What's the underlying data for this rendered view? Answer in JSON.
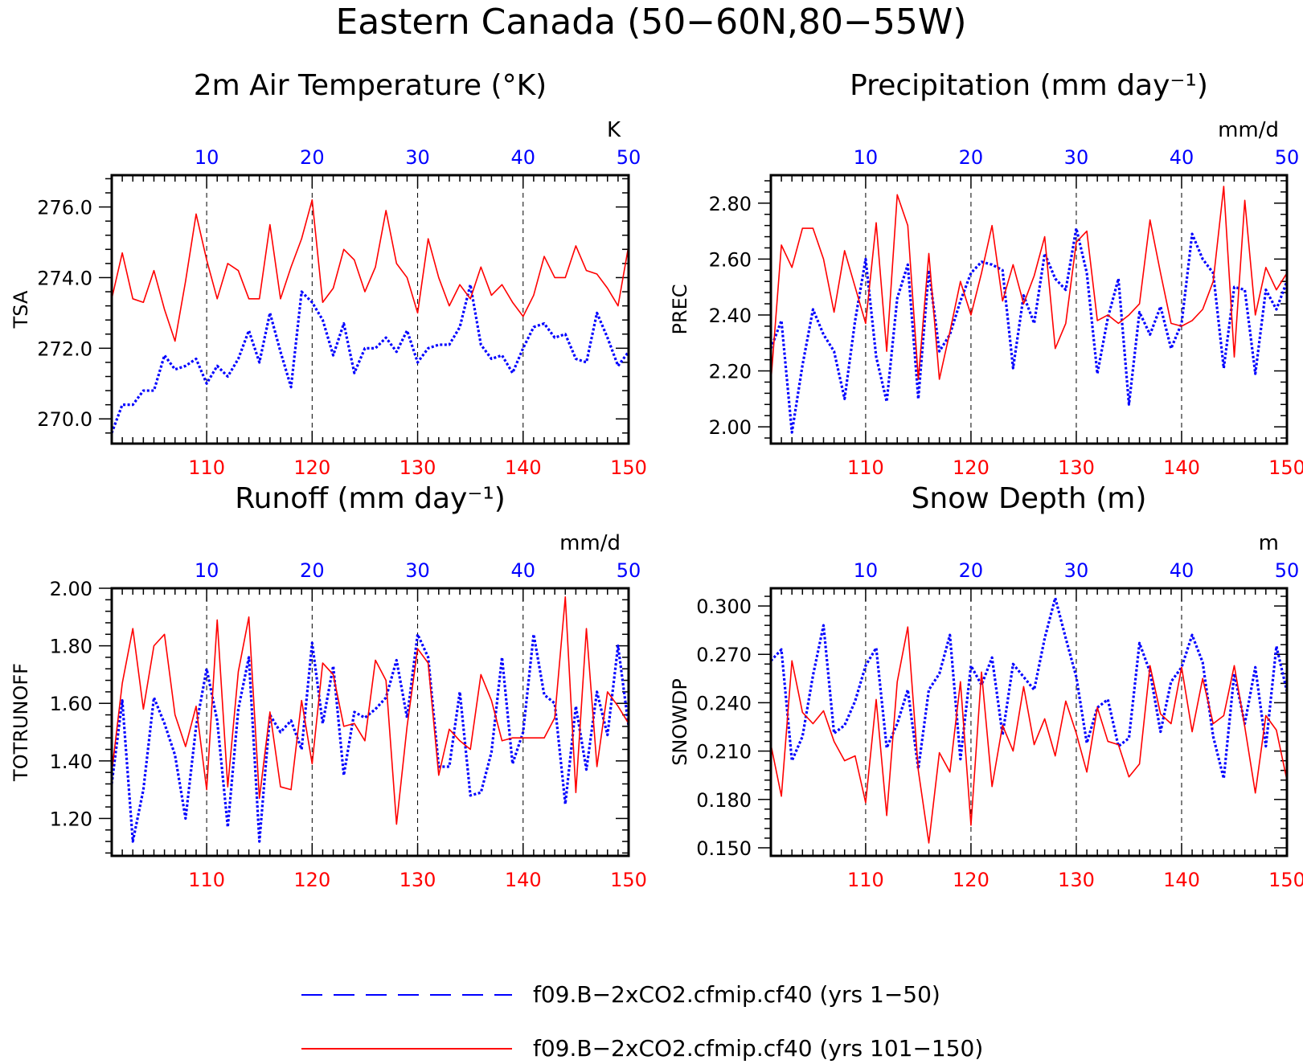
{
  "title": "Eastern Canada (50−60N,80−55W)",
  "colors": {
    "red": "#ff0000",
    "blue": "#0000ff",
    "axis": "#000000",
    "gridline": "#000000"
  },
  "legend": {
    "position": "bottom-center",
    "items": [
      {
        "label": "f09.B−2xCO2.cfmip.cf40 (yrs 1−50)",
        "color": "#0000ff",
        "style": "dashed"
      },
      {
        "label": "f09.B−2xCO2.cfmip.cf40 (yrs 101−150)",
        "color": "#ff0000",
        "style": "solid"
      }
    ]
  },
  "chart_data": [
    {
      "type": "line",
      "title": "2m Air Temperature (°K)",
      "ylabel": "TSA",
      "units": "K",
      "bottom_axis": {
        "range": [
          101,
          150
        ],
        "ticks": [
          110,
          120,
          130,
          140,
          150
        ],
        "color": "#ff0000"
      },
      "top_axis": {
        "range": [
          1,
          50
        ],
        "ticks": [
          10,
          20,
          30,
          40,
          50
        ],
        "color": "#0000ff"
      },
      "ylim": [
        269.3,
        276.9
      ],
      "yticks": [
        270.0,
        272.0,
        274.0,
        276.0
      ],
      "ytick_labels": [
        "270.0",
        "272.0",
        "274.0",
        "276.0"
      ],
      "series": [
        {
          "name": "yrs 1-50",
          "color": "#0000ff",
          "style": "dotted",
          "values": [
            269.6,
            270.4,
            270.4,
            270.8,
            270.8,
            271.8,
            271.4,
            271.5,
            271.7,
            271.0,
            271.5,
            271.2,
            271.7,
            272.5,
            271.6,
            273.0,
            271.9,
            270.9,
            273.6,
            273.3,
            272.8,
            271.8,
            272.7,
            271.3,
            272.0,
            272.0,
            272.3,
            271.9,
            272.5,
            271.6,
            272.0,
            272.1,
            272.1,
            272.6,
            273.8,
            272.1,
            271.7,
            271.8,
            271.3,
            272.0,
            272.6,
            272.7,
            272.3,
            272.4,
            271.7,
            271.6,
            273.0,
            272.3,
            271.5,
            271.9
          ]
        },
        {
          "name": "yrs 101-150",
          "color": "#ff0000",
          "style": "solid",
          "values": [
            273.4,
            274.7,
            273.4,
            273.3,
            274.2,
            273.1,
            272.2,
            273.9,
            275.8,
            274.5,
            273.4,
            274.4,
            274.2,
            273.4,
            273.4,
            275.5,
            273.4,
            274.3,
            275.1,
            276.2,
            273.3,
            273.7,
            274.8,
            274.5,
            273.6,
            274.3,
            275.9,
            274.4,
            274.0,
            273.0,
            275.1,
            274.0,
            273.2,
            273.8,
            273.4,
            274.3,
            273.5,
            273.8,
            273.3,
            272.9,
            273.5,
            274.6,
            274.0,
            274.0,
            274.9,
            274.2,
            274.1,
            273.7,
            273.2,
            274.9
          ]
        }
      ]
    },
    {
      "type": "line",
      "title": "Precipitation (mm day⁻¹)",
      "ylabel": "PREC",
      "units": "mm/d",
      "bottom_axis": {
        "range": [
          101,
          150
        ],
        "ticks": [
          110,
          120,
          130,
          140,
          150
        ],
        "color": "#ff0000"
      },
      "top_axis": {
        "range": [
          1,
          50
        ],
        "ticks": [
          10,
          20,
          30,
          40,
          50
        ],
        "color": "#0000ff"
      },
      "ylim": [
        1.94,
        2.9
      ],
      "yticks": [
        2.0,
        2.2,
        2.4,
        2.6,
        2.8
      ],
      "ytick_labels": [
        "2.00",
        "2.20",
        "2.40",
        "2.60",
        "2.80"
      ],
      "series": [
        {
          "name": "yrs 1-50",
          "color": "#0000ff",
          "style": "dotted",
          "values": [
            2.28,
            2.38,
            1.98,
            2.22,
            2.42,
            2.33,
            2.27,
            2.1,
            2.38,
            2.6,
            2.25,
            2.09,
            2.46,
            2.58,
            2.1,
            2.56,
            2.27,
            2.33,
            2.45,
            2.55,
            2.59,
            2.58,
            2.56,
            2.21,
            2.47,
            2.37,
            2.62,
            2.53,
            2.49,
            2.71,
            2.55,
            2.19,
            2.39,
            2.53,
            2.08,
            2.41,
            2.33,
            2.43,
            2.28,
            2.37,
            2.69,
            2.6,
            2.55,
            2.21,
            2.5,
            2.49,
            2.19,
            2.49,
            2.42,
            2.52
          ]
        },
        {
          "name": "yrs 101-150",
          "color": "#ff0000",
          "style": "solid",
          "values": [
            2.16,
            2.65,
            2.57,
            2.71,
            2.71,
            2.6,
            2.41,
            2.63,
            2.5,
            2.37,
            2.73,
            2.27,
            2.83,
            2.72,
            2.17,
            2.62,
            2.17,
            2.34,
            2.52,
            2.4,
            2.55,
            2.72,
            2.45,
            2.58,
            2.44,
            2.54,
            2.68,
            2.28,
            2.37,
            2.66,
            2.7,
            2.38,
            2.4,
            2.37,
            2.4,
            2.44,
            2.74,
            2.55,
            2.37,
            2.36,
            2.38,
            2.42,
            2.52,
            2.86,
            2.25,
            2.81,
            2.4,
            2.57,
            2.49,
            2.55
          ]
        }
      ]
    },
    {
      "type": "line",
      "title": "Runoff (mm day⁻¹)",
      "ylabel": "TOTRUNOFF",
      "units": "mm/d",
      "bottom_axis": {
        "range": [
          101,
          150
        ],
        "ticks": [
          110,
          120,
          130,
          140,
          150
        ],
        "color": "#ff0000"
      },
      "top_axis": {
        "range": [
          1,
          50
        ],
        "ticks": [
          10,
          20,
          30,
          40,
          50
        ],
        "color": "#0000ff"
      },
      "ylim": [
        1.07,
        2.0
      ],
      "yticks": [
        1.2,
        1.4,
        1.6,
        1.8,
        2.0
      ],
      "ytick_labels": [
        "1.20",
        "1.40",
        "1.60",
        "1.80",
        "2.00"
      ],
      "series": [
        {
          "name": "yrs 1-50",
          "color": "#0000ff",
          "style": "dotted",
          "values": [
            1.32,
            1.61,
            1.12,
            1.3,
            1.62,
            1.53,
            1.42,
            1.2,
            1.52,
            1.72,
            1.54,
            1.17,
            1.58,
            1.76,
            1.12,
            1.56,
            1.5,
            1.54,
            1.44,
            1.81,
            1.53,
            1.73,
            1.35,
            1.57,
            1.55,
            1.58,
            1.62,
            1.75,
            1.55,
            1.84,
            1.76,
            1.38,
            1.38,
            1.64,
            1.28,
            1.29,
            1.43,
            1.76,
            1.39,
            1.5,
            1.84,
            1.63,
            1.6,
            1.25,
            1.59,
            1.37,
            1.64,
            1.49,
            1.8,
            1.52
          ]
        },
        {
          "name": "yrs 101-150",
          "color": "#ff0000",
          "style": "solid",
          "values": [
            1.36,
            1.67,
            1.86,
            1.58,
            1.8,
            1.84,
            1.56,
            1.45,
            1.59,
            1.3,
            1.89,
            1.31,
            1.71,
            1.9,
            1.27,
            1.57,
            1.31,
            1.3,
            1.61,
            1.39,
            1.74,
            1.7,
            1.52,
            1.53,
            1.47,
            1.75,
            1.68,
            1.18,
            1.52,
            1.79,
            1.74,
            1.35,
            1.51,
            1.47,
            1.44,
            1.7,
            1.61,
            1.47,
            1.48,
            1.48,
            1.48,
            1.48,
            1.55,
            1.97,
            1.29,
            1.86,
            1.38,
            1.64,
            1.59,
            1.53
          ]
        }
      ]
    },
    {
      "type": "line",
      "title": "Snow Depth (m)",
      "ylabel": "SNOWDP",
      "units": "m",
      "bottom_axis": {
        "range": [
          101,
          150
        ],
        "ticks": [
          110,
          120,
          130,
          140,
          150
        ],
        "color": "#ff0000"
      },
      "top_axis": {
        "range": [
          1,
          50
        ],
        "ticks": [
          10,
          20,
          30,
          40,
          50
        ],
        "color": "#0000ff"
      },
      "ylim": [
        0.145,
        0.311
      ],
      "yticks": [
        0.15,
        0.18,
        0.21,
        0.24,
        0.27,
        0.3
      ],
      "ytick_labels": [
        "0.150",
        "0.180",
        "0.210",
        "0.240",
        "0.270",
        "0.300"
      ],
      "series": [
        {
          "name": "yrs 1-50",
          "color": "#0000ff",
          "style": "dotted",
          "values": [
            0.266,
            0.273,
            0.204,
            0.219,
            0.257,
            0.288,
            0.221,
            0.226,
            0.241,
            0.263,
            0.274,
            0.212,
            0.227,
            0.248,
            0.199,
            0.248,
            0.258,
            0.282,
            0.205,
            0.263,
            0.251,
            0.268,
            0.22,
            0.264,
            0.256,
            0.248,
            0.28,
            0.305,
            0.28,
            0.256,
            0.215,
            0.237,
            0.242,
            0.213,
            0.218,
            0.277,
            0.259,
            0.222,
            0.253,
            0.262,
            0.282,
            0.265,
            0.219,
            0.193,
            0.258,
            0.227,
            0.262,
            0.213,
            0.275,
            0.247
          ]
        },
        {
          "name": "yrs 101-150",
          "color": "#ff0000",
          "style": "solid",
          "values": [
            0.214,
            0.182,
            0.266,
            0.234,
            0.227,
            0.235,
            0.216,
            0.204,
            0.207,
            0.178,
            0.242,
            0.17,
            0.253,
            0.287,
            0.198,
            0.153,
            0.209,
            0.197,
            0.253,
            0.164,
            0.259,
            0.188,
            0.226,
            0.21,
            0.25,
            0.214,
            0.23,
            0.207,
            0.241,
            0.221,
            0.197,
            0.237,
            0.216,
            0.214,
            0.194,
            0.202,
            0.263,
            0.233,
            0.227,
            0.262,
            0.222,
            0.255,
            0.227,
            0.232,
            0.263,
            0.225,
            0.184,
            0.232,
            0.223,
            0.192
          ]
        }
      ]
    }
  ]
}
